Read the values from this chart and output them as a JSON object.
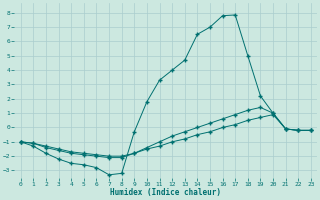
{
  "xlabel": "Humidex (Indice chaleur)",
  "background_color": "#cce8e0",
  "grid_color": "#aacece",
  "line_color": "#007070",
  "xlim": [
    -0.5,
    23.5
  ],
  "ylim": [
    -3.5,
    8.7
  ],
  "yticks": [
    -3,
    -2,
    -1,
    0,
    1,
    2,
    3,
    4,
    5,
    6,
    7,
    8
  ],
  "xticks": [
    0,
    1,
    2,
    3,
    4,
    5,
    6,
    7,
    8,
    9,
    10,
    11,
    12,
    13,
    14,
    15,
    16,
    17,
    18,
    19,
    20,
    21,
    22,
    23
  ],
  "line1_x": [
    0,
    1,
    2,
    3,
    4,
    5,
    6,
    7,
    8,
    9,
    10,
    11,
    12,
    13,
    14,
    15,
    16,
    17,
    18,
    19,
    20,
    21,
    22,
    23
  ],
  "line1_y": [
    -1.0,
    -1.3,
    -1.8,
    -2.2,
    -2.5,
    -2.6,
    -2.8,
    -3.3,
    -3.2,
    -0.3,
    1.8,
    3.3,
    4.0,
    4.7,
    6.5,
    7.0,
    7.8,
    7.85,
    5.0,
    2.2,
    1.0,
    -0.1,
    -0.2,
    -0.2
  ],
  "line2_x": [
    0,
    1,
    2,
    3,
    4,
    5,
    6,
    7,
    8,
    9,
    10,
    11,
    12,
    13,
    14,
    15,
    16,
    17,
    18,
    19,
    20,
    21,
    22,
    23
  ],
  "line2_y": [
    -1.0,
    -1.1,
    -1.4,
    -1.6,
    -1.8,
    -1.9,
    -2.0,
    -2.1,
    -2.1,
    -1.8,
    -1.4,
    -1.0,
    -0.6,
    -0.3,
    0.0,
    0.3,
    0.6,
    0.9,
    1.2,
    1.4,
    1.0,
    -0.1,
    -0.2,
    -0.2
  ],
  "line3_x": [
    0,
    1,
    2,
    3,
    4,
    5,
    6,
    7,
    8,
    9,
    10,
    11,
    12,
    13,
    14,
    15,
    16,
    17,
    18,
    19,
    20,
    21,
    22,
    23
  ],
  "line3_y": [
    -1.0,
    -1.1,
    -1.3,
    -1.5,
    -1.7,
    -1.8,
    -1.9,
    -2.0,
    -2.0,
    -1.8,
    -1.5,
    -1.3,
    -1.0,
    -0.8,
    -0.5,
    -0.3,
    0.0,
    0.2,
    0.5,
    0.7,
    0.9,
    -0.1,
    -0.2,
    -0.2
  ]
}
